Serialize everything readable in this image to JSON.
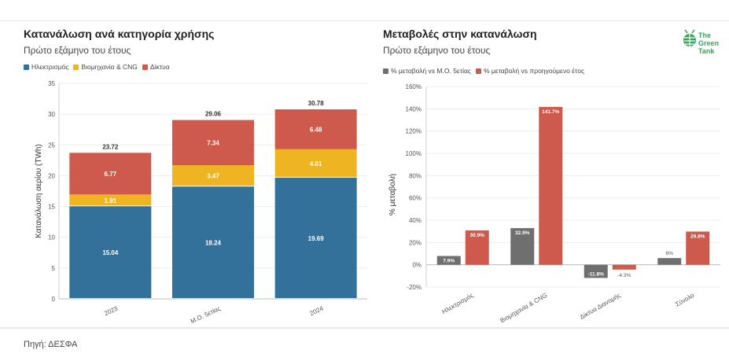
{
  "left": {
    "title": "Κατανάλωση ανά κατηγορία χρήσης",
    "subtitle": "Πρώτο εξάμηνο του έτους"
  },
  "right": {
    "title": "Μεταβολές στην κατανάλωση",
    "subtitle": "Πρώτο εξάμηνο του έτους"
  },
  "logo": {
    "text": "The Green Tank"
  },
  "source": "Πηγή: ΔΕΣΦΑ",
  "colors": {
    "electricity": "#33719b",
    "industry": "#eeb421",
    "networks": "#cd5a4c",
    "avg": "#6f6f6f",
    "prev": "#cd5a4c"
  },
  "chart_data": [
    {
      "type": "bar",
      "stacked": true,
      "categories": [
        "2023",
        "Μ.Ο. 5ετίας",
        "2024"
      ],
      "series": [
        {
          "name": "Ηλεκτρισμός",
          "values": [
            15.04,
            18.24,
            19.69
          ]
        },
        {
          "name": "Βιομηχανία & CNG",
          "values": [
            1.91,
            3.47,
            4.61
          ]
        },
        {
          "name": "Δίκτυα",
          "values": [
            6.77,
            7.34,
            6.48
          ]
        }
      ],
      "totals": [
        23.72,
        29.06,
        30.78
      ],
      "ylabel": "Κατανάλωση αερίου (TWh)",
      "ylim": [
        0,
        35
      ],
      "yticks": [
        "0",
        "5",
        "10",
        "15",
        "20",
        "25",
        "30",
        "35"
      ],
      "legend": "top-left"
    },
    {
      "type": "bar",
      "categories": [
        "Ηλεκτρισμός",
        "Βιομηχανία & CNG",
        "Δίκτυα Διανομής",
        "Σύνολο"
      ],
      "series": [
        {
          "name": "% μεταβολή vs Μ.Ο. 5ετίας",
          "values": [
            7.9,
            32.9,
            -11.8,
            6
          ],
          "labels": [
            "7.9%",
            "32.9%",
            "-11.8%",
            "6%"
          ]
        },
        {
          "name": "% μεταβολή vs προηγούμενο έτος",
          "values": [
            30.9,
            141.7,
            -4.3,
            29.8
          ],
          "labels": [
            "30.9%",
            "141.7%",
            "-4.3%",
            "29.8%"
          ]
        }
      ],
      "ylabel": "% μεταβολή",
      "ylim": [
        -20,
        160
      ],
      "yticks": [
        "-20%",
        "0%",
        "20%",
        "40%",
        "60%",
        "80%",
        "100%",
        "120%",
        "140%",
        "160%"
      ],
      "legend": "top-left"
    }
  ]
}
